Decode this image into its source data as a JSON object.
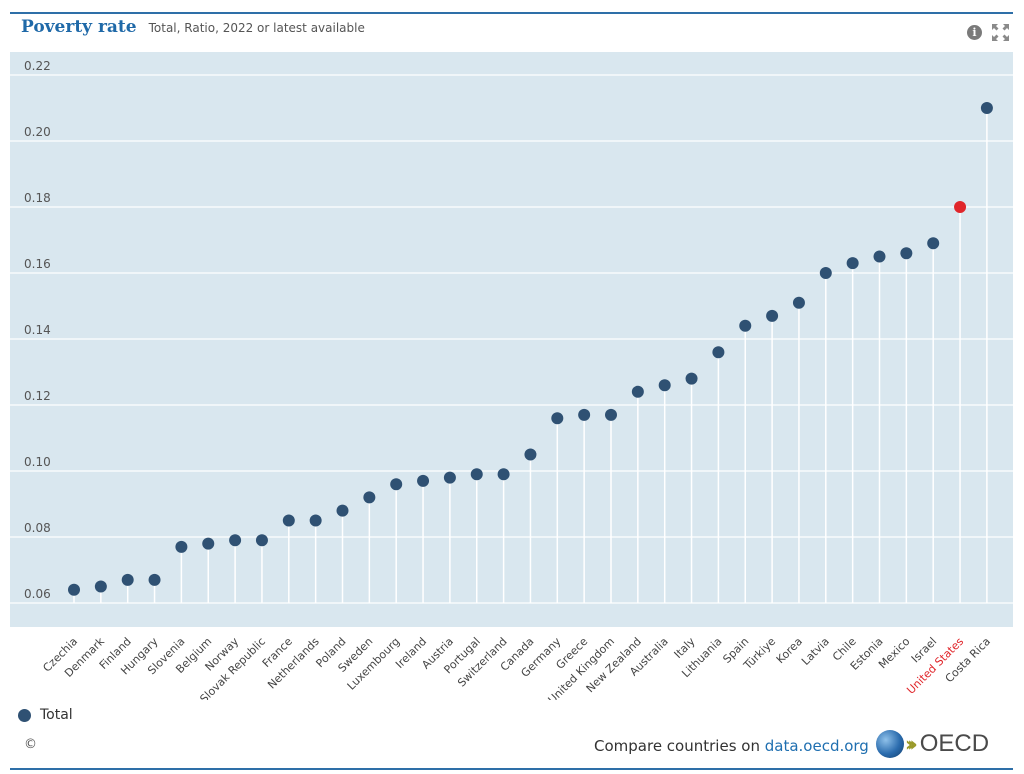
{
  "header": {
    "title": "Poverty rate",
    "subtitle": "Total, Ratio, 2022 or latest available"
  },
  "icons": {
    "info": "info-icon",
    "expand": "expand-icon"
  },
  "legend": {
    "label": "Total"
  },
  "footer": {
    "copyright": "©",
    "compare_text": "Compare countries on ",
    "link_text": "data.oecd.org",
    "logo_text": "OECD"
  },
  "colors": {
    "plot_bg": "#d9e7ef",
    "point": "#2f5173",
    "highlight": "#e0262b",
    "title": "#1f69a8"
  },
  "chart_data": {
    "type": "scatter",
    "title": "Poverty rate",
    "subtitle": "Total, Ratio, 2022 or latest available",
    "xlabel": "",
    "ylabel": "",
    "ylim": [
      0.053,
      0.224
    ],
    "yticks": [
      0.06,
      0.08,
      0.1,
      0.12,
      0.14,
      0.16,
      0.18,
      0.2,
      0.22
    ],
    "ytick_labels": [
      "0.06",
      "0.08",
      "0.10",
      "0.12",
      "0.14",
      "0.16",
      "0.18",
      "0.20",
      "0.22"
    ],
    "grid": true,
    "legend": {
      "position": "bottom-left",
      "entries": [
        "Total"
      ]
    },
    "highlight": "United States",
    "categories": [
      "Czechia",
      "Denmark",
      "Finland",
      "Hungary",
      "Slovenia",
      "Belgium",
      "Norway",
      "Slovak Republic",
      "France",
      "Netherlands",
      "Poland",
      "Sweden",
      "Luxembourg",
      "Ireland",
      "Austria",
      "Portugal",
      "Switzerland",
      "Canada",
      "Germany",
      "Greece",
      "United Kingdom",
      "New Zealand",
      "Australia",
      "Italy",
      "Lithuania",
      "Spain",
      "Türkiye",
      "Korea",
      "Latvia",
      "Chile",
      "Estonia",
      "Mexico",
      "Israel",
      "United States",
      "Costa Rica"
    ],
    "series": [
      {
        "name": "Total",
        "values": [
          0.064,
          0.065,
          0.067,
          0.067,
          0.077,
          0.078,
          0.079,
          0.079,
          0.085,
          0.085,
          0.088,
          0.092,
          0.096,
          0.097,
          0.098,
          0.099,
          0.099,
          0.105,
          0.116,
          0.117,
          0.117,
          0.124,
          0.126,
          0.128,
          0.136,
          0.144,
          0.147,
          0.151,
          0.16,
          0.163,
          0.165,
          0.166,
          0.169,
          0.18,
          0.21
        ]
      }
    ]
  }
}
